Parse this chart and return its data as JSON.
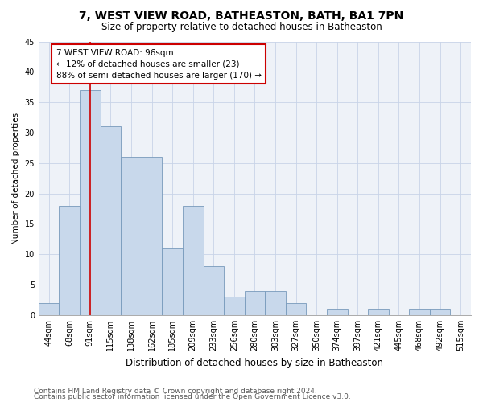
{
  "title": "7, WEST VIEW ROAD, BATHEASTON, BATH, BA1 7PN",
  "subtitle": "Size of property relative to detached houses in Batheaston",
  "xlabel": "Distribution of detached houses by size in Batheaston",
  "ylabel": "Number of detached properties",
  "categories": [
    "44sqm",
    "68sqm",
    "91sqm",
    "115sqm",
    "138sqm",
    "162sqm",
    "185sqm",
    "209sqm",
    "233sqm",
    "256sqm",
    "280sqm",
    "303sqm",
    "327sqm",
    "350sqm",
    "374sqm",
    "397sqm",
    "421sqm",
    "445sqm",
    "468sqm",
    "492sqm",
    "515sqm"
  ],
  "values": [
    2,
    18,
    37,
    31,
    26,
    26,
    11,
    18,
    8,
    3,
    4,
    4,
    2,
    0,
    1,
    0,
    1,
    0,
    1,
    1,
    0
  ],
  "bar_color": "#c8d8eb",
  "bar_edge_color": "#7799bb",
  "bar_linewidth": 0.6,
  "grid_color": "#c8d4e8",
  "bg_color": "#eef2f8",
  "marker_color": "#cc0000",
  "annotation_text": "7 WEST VIEW ROAD: 96sqm\n← 12% of detached houses are smaller (23)\n88% of semi-detached houses are larger (170) →",
  "annotation_box_color": "#ffffff",
  "annotation_box_edge": "#cc0000",
  "ylim": [
    0,
    45
  ],
  "yticks": [
    0,
    5,
    10,
    15,
    20,
    25,
    30,
    35,
    40,
    45
  ],
  "footer1": "Contains HM Land Registry data © Crown copyright and database right 2024.",
  "footer2": "Contains public sector information licensed under the Open Government Licence v3.0.",
  "title_fontsize": 10,
  "subtitle_fontsize": 8.5,
  "xlabel_fontsize": 8.5,
  "ylabel_fontsize": 7.5,
  "tick_fontsize": 7,
  "annotation_fontsize": 7.5,
  "footer_fontsize": 6.5
}
